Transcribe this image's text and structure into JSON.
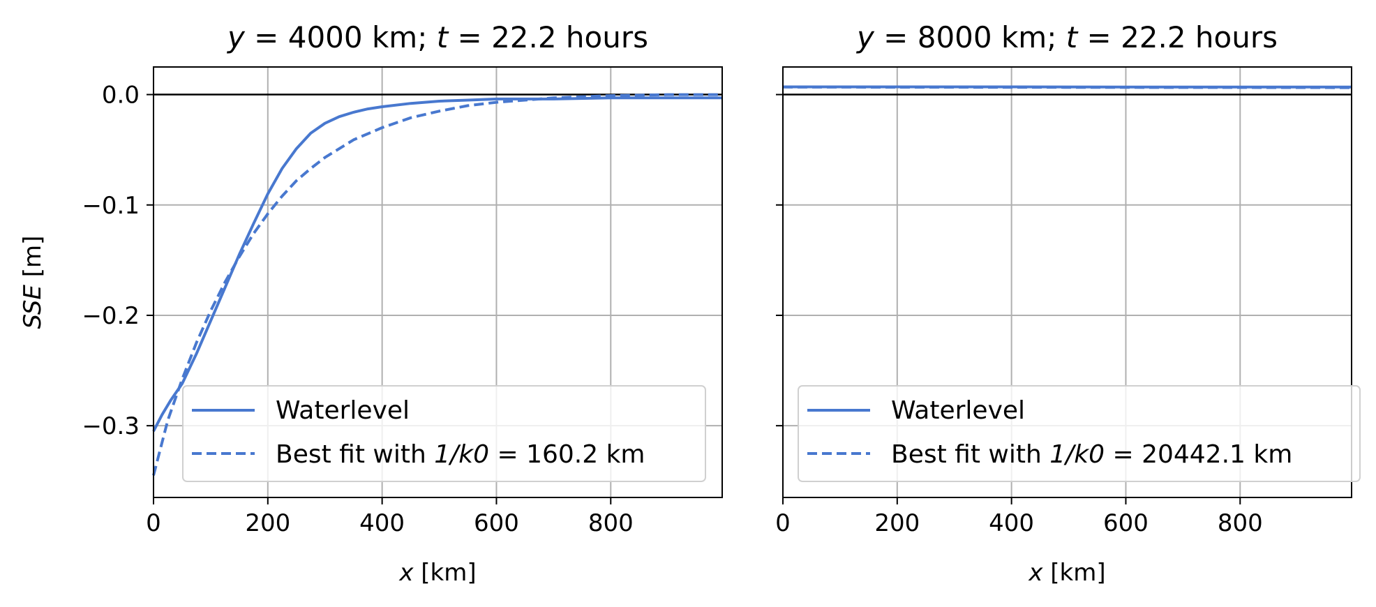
{
  "colors": {
    "series": "#4878cf",
    "grid": "#b0b0b0",
    "zero_line": "#000000"
  },
  "chart_data": [
    {
      "type": "line",
      "title_prefix": "y",
      "title_mid": " = 4000 km; ",
      "title_t": "t",
      "title_suffix": " = 22.2 hours",
      "xlabel_var": "x",
      "xlabel_unit": " [km]",
      "ylabel_var": "SSE",
      "ylabel_unit": " [m]",
      "xlim": [
        0,
        995
      ],
      "ylim": [
        -0.365,
        0.025
      ],
      "xticks": [
        0,
        200,
        400,
        600,
        800
      ],
      "xtick_labels": [
        "0",
        "200",
        "400",
        "600",
        "800"
      ],
      "yticks": [
        0.0,
        -0.1,
        -0.2,
        -0.3
      ],
      "ytick_labels": [
        "0.0",
        "−0.1",
        "−0.2",
        "−0.3"
      ],
      "show_ytick_labels": true,
      "grid": true,
      "legend_position": "lower-right",
      "series": [
        {
          "name": "Waterlevel",
          "style": "solid",
          "x": [
            0,
            15,
            30,
            50,
            75,
            100,
            125,
            150,
            175,
            200,
            225,
            250,
            275,
            300,
            325,
            350,
            375,
            400,
            450,
            500,
            550,
            600,
            700,
            800,
            900,
            995
          ],
          "y": [
            -0.305,
            -0.29,
            -0.277,
            -0.262,
            -0.235,
            -0.205,
            -0.175,
            -0.145,
            -0.117,
            -0.09,
            -0.067,
            -0.049,
            -0.035,
            -0.026,
            -0.02,
            -0.016,
            -0.013,
            -0.011,
            -0.008,
            -0.006,
            -0.005,
            -0.004,
            -0.004,
            -0.003,
            -0.003,
            -0.003
          ]
        },
        {
          "name": "Best fit with ",
          "name_math": "1/k0",
          "name_suffix": " = 160.2 km",
          "style": "dashed",
          "x": [
            0,
            25,
            50,
            75,
            100,
            125,
            150,
            175,
            200,
            225,
            250,
            275,
            300,
            350,
            400,
            450,
            500,
            550,
            600,
            650,
            700,
            800,
            900,
            995
          ],
          "y": [
            -0.345,
            -0.295,
            -0.258,
            -0.225,
            -0.196,
            -0.17,
            -0.147,
            -0.126,
            -0.108,
            -0.092,
            -0.078,
            -0.067,
            -0.057,
            -0.041,
            -0.03,
            -0.021,
            -0.015,
            -0.01,
            -0.007,
            -0.005,
            -0.003,
            -0.001,
            0.0,
            0.0
          ]
        }
      ]
    },
    {
      "type": "line",
      "title_prefix": "y",
      "title_mid": " = 8000 km; ",
      "title_t": "t",
      "title_suffix": " = 22.2 hours",
      "xlabel_var": "x",
      "xlabel_unit": " [km]",
      "xlim": [
        0,
        995
      ],
      "ylim": [
        -0.365,
        0.025
      ],
      "xticks": [
        0,
        200,
        400,
        600,
        800
      ],
      "xtick_labels": [
        "0",
        "200",
        "400",
        "600",
        "800"
      ],
      "yticks": [
        0.0,
        -0.1,
        -0.2,
        -0.3
      ],
      "show_ytick_labels": false,
      "grid": true,
      "legend_position": "lower-right",
      "series": [
        {
          "name": "Waterlevel",
          "style": "solid",
          "x": [
            0,
            200,
            400,
            600,
            800,
            995
          ],
          "y": [
            0.007,
            0.007,
            0.007,
            0.0068,
            0.0068,
            0.0068
          ]
        },
        {
          "name": "Best fit with ",
          "name_math": "1/k0",
          "name_suffix": " = 20442.1 km",
          "style": "dashed",
          "x": [
            0,
            200,
            400,
            600,
            800,
            995
          ],
          "y": [
            0.0068,
            0.0067,
            0.0066,
            0.0065,
            0.0064,
            0.0063
          ]
        }
      ]
    }
  ]
}
